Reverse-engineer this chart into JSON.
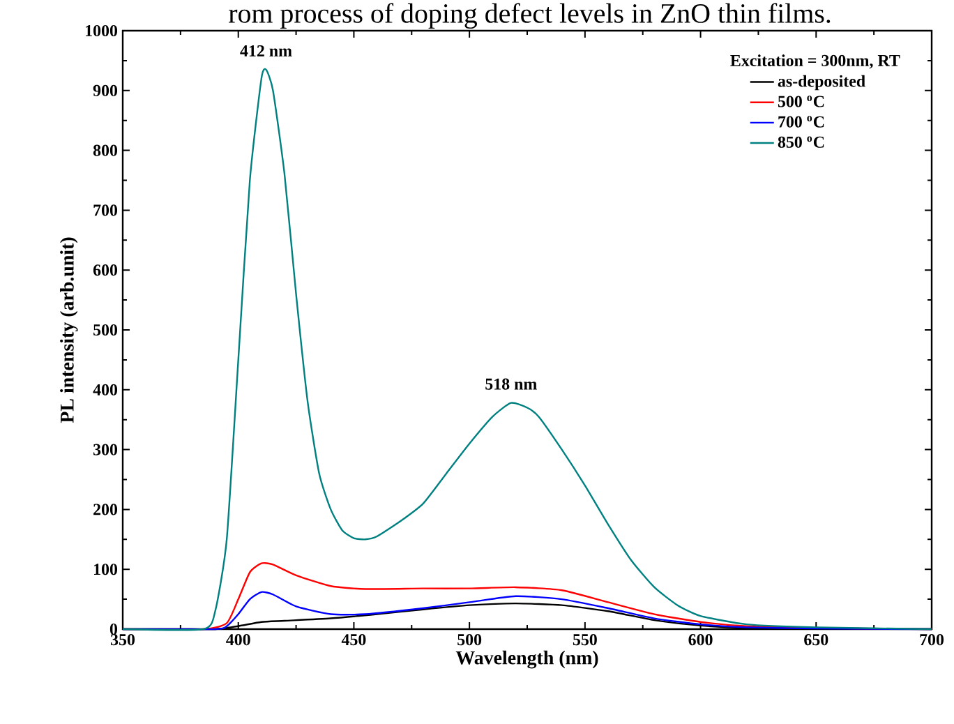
{
  "chart_data": {
    "type": "line",
    "title": "rom process of doping defect levels in ZnO thin films.",
    "xlabel": "Wavelength (nm)",
    "ylabel": "PL intensity (arb.unit)",
    "legend_title": "Excitation = 300nm, RT",
    "legend": "top right",
    "xlim": [
      350,
      700
    ],
    "ylim": [
      0,
      1000
    ],
    "xticks": [
      350,
      400,
      450,
      500,
      550,
      600,
      650,
      700
    ],
    "yticks": [
      0,
      100,
      200,
      300,
      400,
      500,
      600,
      700,
      800,
      900,
      1000
    ],
    "annotations": [
      {
        "text": "412 nm",
        "x": 412,
        "y": 935
      },
      {
        "text": "518 nm",
        "x": 518,
        "y": 378
      }
    ],
    "series": [
      {
        "name": "as-deposited",
        "color": "#000000",
        "x": [
          350,
          380,
          390,
          400,
          410,
          420,
          440,
          460,
          480,
          500,
          520,
          540,
          560,
          580,
          600,
          620,
          650,
          700
        ],
        "values": [
          0,
          0,
          0,
          5,
          12,
          14,
          18,
          25,
          33,
          40,
          43,
          40,
          30,
          15,
          6,
          2,
          1,
          0
        ]
      },
      {
        "name": "500 $^{o}$C",
        "color": "#ff0000",
        "x": [
          350,
          385,
          395,
          400,
          405,
          410,
          415,
          425,
          440,
          455,
          480,
          500,
          520,
          540,
          560,
          580,
          600,
          620,
          650,
          700
        ],
        "values": [
          0,
          0,
          10,
          50,
          95,
          110,
          108,
          90,
          72,
          67,
          68,
          68,
          70,
          65,
          45,
          25,
          12,
          5,
          2,
          0
        ]
      },
      {
        "name": "700 $^{o}$C",
        "color": "#0000ff",
        "x": [
          350,
          390,
          395,
          400,
          405,
          410,
          415,
          425,
          440,
          455,
          480,
          500,
          520,
          540,
          560,
          580,
          600,
          620,
          650,
          700
        ],
        "values": [
          0,
          0,
          5,
          25,
          50,
          62,
          58,
          38,
          25,
          25,
          35,
          45,
          55,
          50,
          35,
          18,
          8,
          3,
          1,
          0
        ]
      },
      {
        "name": "850 $^{o}$C",
        "color": "#008080",
        "x": [
          350,
          385,
          390,
          395,
          400,
          405,
          410,
          412,
          415,
          420,
          425,
          430,
          435,
          440,
          445,
          450,
          455,
          460,
          470,
          480,
          490,
          500,
          510,
          518,
          525,
          530,
          540,
          550,
          560,
          570,
          580,
          590,
          600,
          620,
          650,
          700
        ],
        "values": [
          0,
          0,
          30,
          150,
          450,
          750,
          920,
          935,
          900,
          760,
          560,
          380,
          260,
          200,
          165,
          152,
          150,
          155,
          180,
          210,
          260,
          310,
          355,
          378,
          370,
          355,
          300,
          240,
          175,
          115,
          70,
          40,
          22,
          8,
          3,
          0
        ]
      }
    ]
  }
}
